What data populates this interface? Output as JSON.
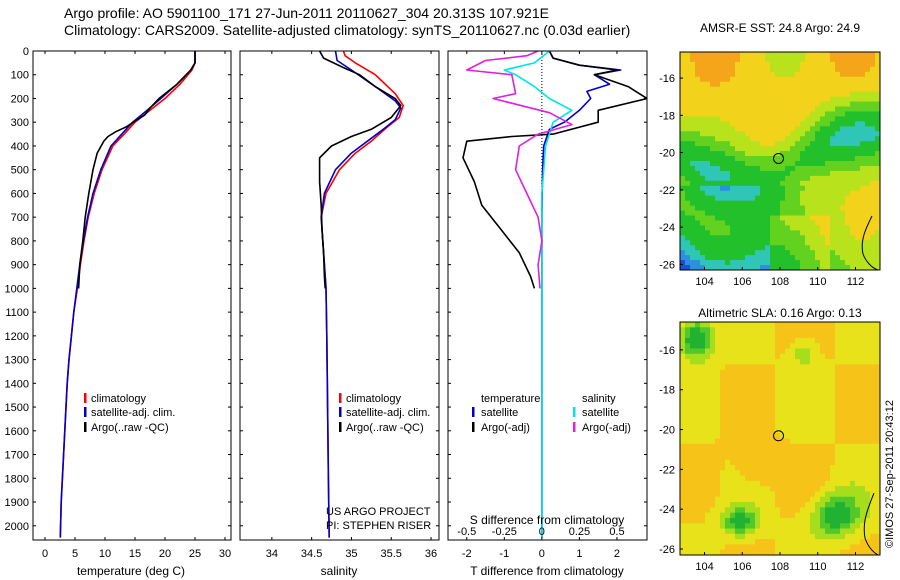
{
  "header": {
    "line1": "Argo profile: AO 5901100_171 27-Jun-2011 20110627_304 20.313S 107.921E",
    "line2": "Climatology: CARS2009. Satellite-adjusted climatology: synTS_20110627.nc (0.03d earlier)"
  },
  "side_stamp": "©IMOS 27-Sep-2011 20:43:12",
  "project_note": [
    "US ARGO PROJECT",
    "PI: STEPHEN RISER"
  ],
  "colors": {
    "climatology": "#ff0000",
    "satellite": "#0000cc",
    "argo": "#000000",
    "sat_salinity": "#00e5e5",
    "argo_salinity": "#e020e0"
  },
  "chart_data": [
    {
      "type": "line",
      "id": "temperature",
      "xlabel": "temperature (deg C)",
      "ylabel": "",
      "xlim": [
        -2,
        31
      ],
      "ylim": [
        2060,
        0
      ],
      "xticks": [
        0,
        5,
        10,
        15,
        20,
        25,
        30
      ],
      "yticks": [
        0,
        100,
        200,
        300,
        400,
        500,
        600,
        700,
        800,
        900,
        1000,
        1100,
        1200,
        1300,
        1400,
        1500,
        1600,
        1700,
        1800,
        1900,
        2000
      ],
      "legend": [
        "climatology",
        "satellite-adj. clim.",
        "Argo(..raw -QC)"
      ],
      "series": [
        {
          "name": "climatology",
          "color": "#ff0000",
          "points": [
            [
              25,
              0
            ],
            [
              25,
              50
            ],
            [
              24.5,
              80
            ],
            [
              22.5,
              140
            ],
            [
              20,
              200
            ],
            [
              17.5,
              250
            ],
            [
              15,
              300
            ],
            [
              13.2,
              350
            ],
            [
              11.3,
              400
            ],
            [
              9.5,
              500
            ],
            [
              8.2,
              600
            ],
            [
              7.2,
              700
            ],
            [
              6.5,
              800
            ],
            [
              5.9,
              900
            ],
            [
              5.4,
              1000
            ],
            [
              4.8,
              1100
            ],
            [
              4.4,
              1200
            ],
            [
              4,
              1300
            ],
            [
              3.7,
              1400
            ],
            [
              3.5,
              1500
            ],
            [
              3.3,
              1600
            ],
            [
              3.1,
              1700
            ],
            [
              2.9,
              1800
            ],
            [
              2.7,
              1900
            ],
            [
              2.6,
              2000
            ],
            [
              2.55,
              2050
            ]
          ]
        },
        {
          "name": "satellite-adj. clim.",
          "color": "#0000cc",
          "points": [
            [
              25,
              0
            ],
            [
              25,
              50
            ],
            [
              24.3,
              80
            ],
            [
              22,
              140
            ],
            [
              19.3,
              200
            ],
            [
              17,
              250
            ],
            [
              14.6,
              300
            ],
            [
              12.8,
              350
            ],
            [
              11,
              400
            ],
            [
              9.3,
              500
            ],
            [
              8,
              600
            ],
            [
              7.1,
              700
            ],
            [
              6.4,
              800
            ],
            [
              5.8,
              900
            ],
            [
              5.3,
              1000
            ],
            [
              4.8,
              1100
            ],
            [
              4.4,
              1200
            ],
            [
              4,
              1300
            ],
            [
              3.7,
              1400
            ],
            [
              3.5,
              1500
            ],
            [
              3.3,
              1600
            ],
            [
              3.1,
              1700
            ],
            [
              2.9,
              1800
            ],
            [
              2.7,
              1900
            ],
            [
              2.6,
              2000
            ],
            [
              2.55,
              2050
            ]
          ]
        },
        {
          "name": "Argo(..raw -QC)",
          "color": "#000000",
          "points": [
            [
              25,
              0
            ],
            [
              25,
              50
            ],
            [
              24.3,
              80
            ],
            [
              22,
              140
            ],
            [
              19,
              200
            ],
            [
              17.5,
              240
            ],
            [
              16.6,
              270
            ],
            [
              13.5,
              320
            ],
            [
              11.8,
              340
            ],
            [
              10.5,
              360
            ],
            [
              9.8,
              380
            ],
            [
              8.7,
              430
            ],
            [
              8,
              500
            ],
            [
              7.3,
              600
            ],
            [
              6.7,
              700
            ],
            [
              6.3,
              800
            ],
            [
              5.8,
              900
            ],
            [
              5.6,
              1000
            ]
          ]
        }
      ]
    },
    {
      "type": "line",
      "id": "salinity",
      "xlabel": "salinity",
      "ylabel": "",
      "xlim": [
        33.6,
        36.1
      ],
      "ylim": [
        2060,
        0
      ],
      "xticks": [
        34,
        34.5,
        35,
        35.5,
        36
      ],
      "yticks": [
        0,
        100,
        200,
        300,
        400,
        500,
        600,
        700,
        800,
        900,
        1000,
        1100,
        1200,
        1300,
        1400,
        1500,
        1600,
        1700,
        1800,
        1900,
        2000
      ],
      "legend": [
        "climatology",
        "satellite-adj. clim.",
        "Argo(..raw -QC)"
      ],
      "series": [
        {
          "name": "climatology",
          "color": "#ff0000",
          "points": [
            [
              34.9,
              0
            ],
            [
              34.92,
              20
            ],
            [
              35.05,
              50
            ],
            [
              35.3,
              100
            ],
            [
              35.55,
              180
            ],
            [
              35.65,
              230
            ],
            [
              35.6,
              280
            ],
            [
              35.45,
              320
            ],
            [
              35.25,
              380
            ],
            [
              35.05,
              430
            ],
            [
              34.85,
              500
            ],
            [
              34.68,
              600
            ],
            [
              34.62,
              700
            ],
            [
              34.64,
              800
            ],
            [
              34.66,
              900
            ],
            [
              34.68,
              1000
            ],
            [
              34.69,
              1200
            ],
            [
              34.7,
              1500
            ],
            [
              34.71,
              1800
            ],
            [
              34.72,
              2050
            ]
          ]
        },
        {
          "name": "satellite-adj. clim.",
          "color": "#0000cc",
          "points": [
            [
              34.8,
              0
            ],
            [
              34.82,
              40
            ],
            [
              35.0,
              80
            ],
            [
              35.3,
              150
            ],
            [
              35.55,
              210
            ],
            [
              35.62,
              240
            ],
            [
              35.55,
              290
            ],
            [
              35.4,
              330
            ],
            [
              35.2,
              380
            ],
            [
              35.0,
              430
            ],
            [
              34.8,
              500
            ],
            [
              34.66,
              600
            ],
            [
              34.62,
              700
            ],
            [
              34.64,
              800
            ],
            [
              34.66,
              900
            ],
            [
              34.68,
              1000
            ],
            [
              34.69,
              1200
            ],
            [
              34.7,
              1500
            ],
            [
              34.71,
              1800
            ],
            [
              34.72,
              2050
            ]
          ]
        },
        {
          "name": "Argo(..raw -QC)",
          "color": "#000000",
          "points": [
            [
              34.6,
              0
            ],
            [
              34.65,
              30
            ],
            [
              34.9,
              70
            ],
            [
              35.1,
              100
            ],
            [
              35.3,
              150
            ],
            [
              35.55,
              200
            ],
            [
              35.62,
              230
            ],
            [
              35.5,
              280
            ],
            [
              35.25,
              330
            ],
            [
              35.0,
              360
            ],
            [
              34.75,
              400
            ],
            [
              34.6,
              450
            ],
            [
              34.6,
              550
            ],
            [
              34.62,
              650
            ],
            [
              34.63,
              750
            ],
            [
              34.65,
              850
            ],
            [
              34.66,
              950
            ],
            [
              34.67,
              1000
            ]
          ]
        }
      ]
    },
    {
      "type": "line",
      "id": "differences",
      "xlabel": "T difference from climatology",
      "xlabel_top": "S difference from climatology",
      "xlim": [
        -2.5,
        2.8
      ],
      "ylim": [
        2060,
        0
      ],
      "xticks": [
        -2,
        -1,
        0,
        1,
        2
      ],
      "s_ticks": [
        {
          "v": -0.5,
          "label": "-0.5"
        },
        {
          "v": -0.25,
          "label": "-0.25"
        },
        {
          "v": 0,
          "label": "0"
        },
        {
          "v": 0.25,
          "label": "0.25"
        },
        {
          "v": 0.5,
          "label": "0.5"
        }
      ],
      "s_scale": 4,
      "yticks": [
        0,
        100,
        200,
        300,
        400,
        500,
        600,
        700,
        800,
        900,
        1000,
        1100,
        1200,
        1300,
        1400,
        1500,
        1600,
        1700,
        1800,
        1900,
        2000
      ],
      "legend_group_1": "temperature",
      "legend_group_2": "salinity",
      "legend": [
        "satellite",
        "Argo(-adj)",
        "satellite",
        "Argo(-adj)"
      ],
      "series": [
        {
          "name": "satellite (temperature)",
          "color": "#0000cc",
          "points": [
            [
              0.2,
              0
            ],
            [
              0.3,
              30
            ],
            [
              1.0,
              60
            ],
            [
              2.1,
              80
            ],
            [
              1.4,
              100
            ],
            [
              1.8,
              140
            ],
            [
              1.2,
              170
            ],
            [
              1.3,
              200
            ],
            [
              1.0,
              250
            ],
            [
              0.6,
              300
            ],
            [
              0.2,
              330
            ],
            [
              0.05,
              400
            ],
            [
              0.02,
              500
            ],
            [
              0.0,
              700
            ],
            [
              0.0,
              1000
            ],
            [
              0.0,
              1500
            ],
            [
              0.0,
              2050
            ]
          ]
        },
        {
          "name": "Argo(-adj) (temperature)",
          "color": "#000000",
          "points": [
            [
              0.2,
              0
            ],
            [
              0.3,
              30
            ],
            [
              1.0,
              60
            ],
            [
              2.0,
              80
            ],
            [
              1.4,
              100
            ],
            [
              2.3,
              150
            ],
            [
              2.8,
              200
            ],
            [
              1.5,
              250
            ],
            [
              1.5,
              300
            ],
            [
              0.3,
              350
            ],
            [
              -0.8,
              360
            ],
            [
              -2.0,
              380
            ],
            [
              -2.1,
              450
            ],
            [
              -1.8,
              550
            ],
            [
              -1.6,
              650
            ],
            [
              -1.1,
              750
            ],
            [
              -0.6,
              850
            ],
            [
              -0.3,
              950
            ],
            [
              -0.2,
              1000
            ]
          ]
        },
        {
          "name": "satellite (salinity)",
          "color": "#00e5e5",
          "points": [
            [
              0.2,
              0
            ],
            [
              -0.2,
              50
            ],
            [
              -1.0,
              80
            ],
            [
              -0.7,
              100
            ],
            [
              -0.2,
              150
            ],
            [
              0.2,
              200
            ],
            [
              0.8,
              250
            ],
            [
              0.3,
              300
            ],
            [
              0.1,
              400
            ],
            [
              0.0,
              600
            ],
            [
              0.0,
              800
            ],
            [
              0.0,
              1000
            ],
            [
              0.0,
              1500
            ],
            [
              0.0,
              2050
            ]
          ]
        },
        {
          "name": "Argo(-adj) (salinity)",
          "color": "#e020e0",
          "points": [
            [
              -0.1,
              0
            ],
            [
              -0.4,
              20
            ],
            [
              -1.5,
              40
            ],
            [
              -2.0,
              80
            ],
            [
              -0.8,
              100
            ],
            [
              -0.7,
              180
            ],
            [
              -1.3,
              200
            ],
            [
              0.2,
              260
            ],
            [
              0.8,
              310
            ],
            [
              -0.1,
              350
            ],
            [
              -0.6,
              400
            ],
            [
              -0.7,
              500
            ],
            [
              -0.4,
              600
            ],
            [
              -0.1,
              700
            ],
            [
              0.0,
              800
            ],
            [
              -0.1,
              900
            ],
            [
              -0.05,
              1000
            ]
          ]
        }
      ]
    },
    {
      "type": "heatmap",
      "id": "sst",
      "title": "AMSR-E SST: 24.8 Argo: 24.9",
      "xlim": [
        102.7,
        113.3
      ],
      "ylim": [
        -26.3,
        -14.6
      ],
      "xticks": [
        104,
        106,
        108,
        110,
        112
      ],
      "yticks": [
        -16,
        -18,
        -20,
        -22,
        -24,
        -26
      ],
      "marker": [
        107.921,
        -20.313
      ]
    },
    {
      "type": "heatmap",
      "id": "sla",
      "title": "Altimetric SLA: 0.16 Argo: 0.13",
      "xlim": [
        102.7,
        113.3
      ],
      "ylim": [
        -26.3,
        -14.6
      ],
      "xticks": [
        104,
        106,
        108,
        110,
        112
      ],
      "yticks": [
        -16,
        -18,
        -20,
        -22,
        -24,
        -26
      ],
      "marker": [
        107.921,
        -20.313
      ]
    }
  ]
}
